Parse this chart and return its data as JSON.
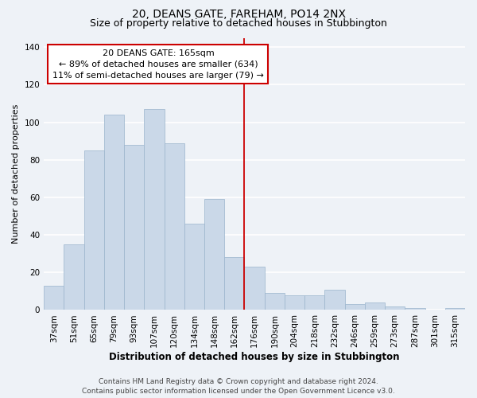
{
  "title": "20, DEANS GATE, FAREHAM, PO14 2NX",
  "subtitle": "Size of property relative to detached houses in Stubbington",
  "xlabel": "Distribution of detached houses by size in Stubbington",
  "ylabel": "Number of detached properties",
  "footer_line1": "Contains HM Land Registry data © Crown copyright and database right 2024.",
  "footer_line2": "Contains public sector information licensed under the Open Government Licence v3.0.",
  "bar_labels": [
    "37sqm",
    "51sqm",
    "65sqm",
    "79sqm",
    "93sqm",
    "107sqm",
    "120sqm",
    "134sqm",
    "148sqm",
    "162sqm",
    "176sqm",
    "190sqm",
    "204sqm",
    "218sqm",
    "232sqm",
    "246sqm",
    "259sqm",
    "273sqm",
    "287sqm",
    "301sqm",
    "315sqm"
  ],
  "bar_values": [
    13,
    35,
    85,
    104,
    88,
    107,
    89,
    46,
    59,
    28,
    23,
    9,
    8,
    8,
    11,
    3,
    4,
    2,
    1,
    0,
    1
  ],
  "bar_color": "#cad8e8",
  "bar_edge_color": "#9ab4cc",
  "annotation_line1": "20 DEANS GATE: 165sqm",
  "annotation_line2": "← 89% of detached houses are smaller (634)",
  "annotation_line3": "11% of semi-detached houses are larger (79) →",
  "annotation_box_color": "#cc0000",
  "vline_x": 9.5,
  "vline_color": "#cc0000",
  "ylim": [
    0,
    145
  ],
  "yticks": [
    0,
    20,
    40,
    60,
    80,
    100,
    120,
    140
  ],
  "bg_color": "#eef2f7",
  "grid_color": "#ffffff",
  "title_fontsize": 10,
  "subtitle_fontsize": 9,
  "xlabel_fontsize": 8.5,
  "ylabel_fontsize": 8,
  "tick_fontsize": 7.5,
  "annotation_fontsize": 8,
  "footer_fontsize": 6.5
}
